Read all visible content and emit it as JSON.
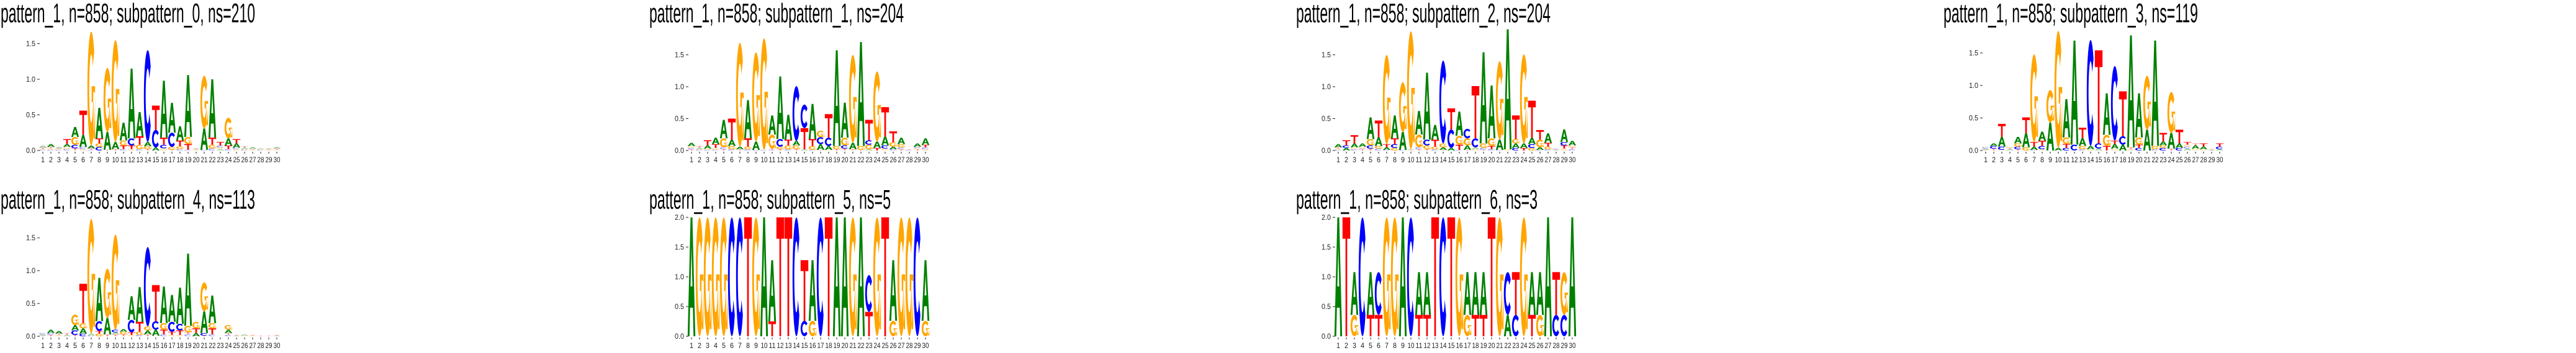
{
  "chart_data": [
    {
      "type": "sequence-logo",
      "title": "pattern_1, n=858; subpattern_0, ns=210",
      "ylim": [
        0,
        1.7
      ],
      "yticks": [
        "0.0",
        "0.5",
        "1.0",
        "1.5"
      ],
      "xticks": [
        "1",
        "2",
        "3",
        "4",
        "5",
        "6",
        "7",
        "8",
        "9",
        "10",
        "11",
        "12",
        "13",
        "14",
        "15",
        "16",
        "17",
        "18",
        "19",
        "20",
        "21",
        "22",
        "23",
        "24",
        "25",
        "26",
        "27",
        "28",
        "29",
        "30"
      ],
      "columns": [
        "C.01 G.01 T.02 A.03",
        "C.01 G.02 T.02 A.04",
        "C.01 G.01 T.01 A.02",
        "C.02 G.03 A.04 T.07",
        "T.03 C.05 G.11 A.14",
        "G.02 C.03 A.17 T.34",
        "C.01 T.02 A.04 G1.6",
        "C.05 G.05 T.07 A.43",
        "T.01 A.25 G.9",
        "T.02 A.1 G1.43",
        "C.02 T.05 G.07 A.25",
        "G.02 T.05 C.1 A.98",
        "C.02 G.06 T.12 A.34",
        "T.02 G.04 A.06 C1.29",
        "A.04 C.25 T.34",
        "G.03 C.05 T.1 A.8",
        "T.01 G.04 C.2 A.42",
        "C.02 G.04 T.08 A.2",
        "C.01 T.08 G.1 A.87",
        "G.01 T.01 A.01",
        "C.01 A.3 G.74",
        "C.03 G.05 T.1 A.82",
        "A.02 G.02 C.03 T.05",
        "C.02 T.05 A.1 G.29",
        "G.02 C.02 A.06 T.06",
        "C.01 G.01 A.02 T.02",
        "G.01 T.01 A.03",
        "C.01 G.01 A.01",
        "G.01 T.01 A.01",
        "G.01 T.02 A.02"
      ]
    },
    {
      "type": "sequence-logo",
      "title": "pattern_1, n=858; subpattern_1, ns=204",
      "ylim": [
        0,
        1.9
      ],
      "yticks": [
        "0.0",
        "0.5",
        "1.0",
        "1.5"
      ],
      "xticks": [
        "1",
        "2",
        "3",
        "4",
        "5",
        "6",
        "7",
        "8",
        "9",
        "10",
        "11",
        "12",
        "13",
        "14",
        "15",
        "16",
        "17",
        "18",
        "19",
        "20",
        "21",
        "22",
        "23",
        "24",
        "25",
        "26",
        "27",
        "28",
        "29",
        "30"
      ],
      "columns": [
        "T.02 C.02 G.03 A.05",
        "C.01 G.01 A.02 T.03",
        "C.01 G.02 A.05 T.08",
        "C.01 G.03 T.06 A.1",
        "T.02 C.03 G.14 A.29",
        "C.02 G.05 A.1 T.33",
        "T.02 A.04 G1.63",
        "C.02 G.04 T.13 A.6",
        "C.01 A.13 G1.4",
        "C.01 G1.75",
        "C.01 T.02 G.22 A.3",
        "T.02 G.04 C.12 A.98",
        "C.02 G.06 T.09 A.39",
        "T.02 G.06 A.07 C.86",
        "A.02 T.33 C.37",
        "C.01 G.06 T.11 A.55",
        "T.01 A.09 C.11 G.1",
        "G.01 A.06 C.13 T.37",
        "T.02 G.05 A1.5",
        "T.03 C.05 G.12 A.55",
        "T.02 A.1 G1.38",
        "T.01 G.06 A1.63",
        "A.02 G.07 C.07 T.32",
        "T.04 A.1 G1.1",
        "G.03 C.05 A.14 T.46",
        "C.02 A.04 G.07 T.17",
        "T.02 C.03 G.05 A.1",
        "C.01 T.01",
        "T.02 G.02 C.02 A.05",
        "G.02 C.03 T.04 A.1"
      ]
    },
    {
      "type": "sequence-logo",
      "title": "pattern_1, n=858; subpattern_2, ns=204",
      "ylim": [
        0,
        1.9
      ],
      "yticks": [
        "0.0",
        "0.5",
        "1.0",
        "1.5"
      ],
      "xticks": [
        "1",
        "2",
        "3",
        "4",
        "5",
        "6",
        "7",
        "8",
        "9",
        "10",
        "11",
        "12",
        "13",
        "14",
        "15",
        "16",
        "17",
        "18",
        "19",
        "20",
        "21",
        "22",
        "23",
        "24",
        "25",
        "26",
        "27",
        "28",
        "29",
        "30"
      ],
      "columns": [
        "C.01 G.02 T.02 A.05",
        "A.04 C.04 T.08",
        "C.02 G.03 A.06 T.13",
        "T.02 C.01 G.03 A.05",
        "T.03 C.05 G.1 A.34",
        "C.03 G.04 A.14 T.26",
        "C.01 A.04 T.05 G1.4",
        "G.04 C.06 T.09 A.36",
        "C.01 A.28 G.78",
        "T.01 A.01 G1.85",
        "T.02 C.03 G.2 A.37",
        "T.02 G.06 C.09 A1.05",
        "C.02 G.04 T.11 A.23",
        "T.01 A.04 G.06 C1.3",
        "A.04 C.29 T.33",
        "C.01 T.08 G.14 A.38",
        "T.01 A.07 G.11 C.15",
        "G.02 A.03 C.14 T.82",
        "T.01 C.03 G.07 A1.43",
        "C.02 T.05 G.12 A.83",
        "C.01 A.16 G1.23",
        "G.02 A1.88",
        "C.04 A.07 G.07 T.37",
        "T.04 A.07 G1.4",
        "G.04 C.06 A.1 T.58",
        "C.01 A.04 G.12 T.15",
        "C.02 G.04 T.06 A.15",
        "A.01 T.01 C.01",
        "G.03 T.05 C.05 A.2",
        "C.02 T.03 G.03 A.07"
      ]
    },
    {
      "type": "sequence-logo",
      "title": "pattern_1, n=858; subpattern_3, ns=119",
      "ylim": [
        0,
        1.85
      ],
      "yticks": [
        "0.0",
        "0.5",
        "1.0",
        "1.5"
      ],
      "xticks": [
        "1",
        "2",
        "3",
        "4",
        "5",
        "6",
        "7",
        "8",
        "9",
        "10",
        "11",
        "12",
        "13",
        "14",
        "15",
        "16",
        "17",
        "18",
        "19",
        "20",
        "21",
        "22",
        "23",
        "24",
        "25",
        "26",
        "27",
        "28",
        "29",
        "30"
      ],
      "columns": [
        "T.01 A.02 C.02 G.01",
        "T.03 C.04 A.04",
        "G.01 C.05 A.15 T.2",
        "A.02 T.02 G.02",
        "T.02 C.04 G.05 A.1",
        "G.05 A.22 T.24",
        "C.01 A.05 T.07 G1.35",
        "G.02 C.05 T.08 A.14",
        "A.43 G.5",
        "A.04 G1.8",
        "C.04 T.06 G.1 A.59",
        "C.09 A1.6",
        "C.02 G.05 A.12 T.16",
        "G.02 A.05 C1.63",
        "A.03 C.08 T1.43",
        "T.07 G.17 A.64",
        "G.03 A.07 T.05 C1.15",
        "A.09 C.13 T.69",
        "G.02 T.03 A1.72",
        "C.04 T.05 G.11 A.68",
        "A.32 G.83",
        "C.02 G.05 A1.62",
        "C.04 G.04 A.06 T.13",
        "T.03 A.24 G.63",
        "C.04 A.07 T.21",
        "A.03 C.03 G.03 T.04",
        "G.03 A.05 T.03",
        "G.02 A.04 T.05",
        "A.01 T.01",
        "A.02 C.04 T.05"
      ]
    },
    {
      "type": "sequence-logo",
      "title": "pattern_1, n=858; subpattern_4, ns=113",
      "ylim": [
        0,
        1.8
      ],
      "yticks": [
        "0.0",
        "0.5",
        "1.0",
        "1.5"
      ],
      "xticks": [
        "1",
        "2",
        "3",
        "4",
        "5",
        "6",
        "7",
        "8",
        "9",
        "10",
        "11",
        "12",
        "13",
        "14",
        "15",
        "16",
        "17",
        "18",
        "19",
        "20",
        "21",
        "22",
        "23",
        "24",
        "25",
        "26",
        "27",
        "28",
        "29",
        "30"
      ],
      "columns": [
        "T.01 A.02 C.02",
        "T.02 C.03 A.05",
        "G.02 T.02 A.04",
        "A.02 T.03",
        "T.02 C.07 A.08 G.16",
        "C.04 A.08 G.08 T.6",
        "C.01 A.03 G1.75",
        "G.04 T.04 C.15 A.66",
        "T.03 A.25 G.75",
        "T.03 A.03 C.04 G1.45",
        "T.03 G.04 A.04",
        "G.02 T.04 C.19 A.36",
        "C.02 G.05 T.15 A.53",
        "T.03 A.06 G.06 C1.21",
        "G.01 A.09 C.13 T.55",
        "C.03 T.07 G.1 A.56",
        "G.02 T.05 C.15 A.41",
        "G.02 T.07 C.1 A.55",
        "C.03 T.03 G.1 A1.1",
        "A.05 T.07 G.1",
        "T.01 C.04 A.33 G.44",
        "C.03 T.09 G.08 A.42",
        "",
        "C.02 T.03 A.05 G.07",
        "A.01 T.01",
        "G.01 A.02",
        "G.01 T.01",
        "T.01",
        "T.01",
        "A.01 T.01"
      ]
    },
    {
      "type": "sequence-logo",
      "title": "pattern_1, n=858; subpattern_5, ns=5",
      "ylim": [
        0,
        2.0
      ],
      "yticks": [
        "0.0",
        "0.5",
        "1.0",
        "1.5",
        "2.0"
      ],
      "xticks": [
        "1",
        "2",
        "3",
        "4",
        "5",
        "6",
        "7",
        "8",
        "9",
        "10",
        "11",
        "12",
        "13",
        "14",
        "15",
        "16",
        "17",
        "18",
        "19",
        "20",
        "21",
        "22",
        "23",
        "24",
        "25",
        "26",
        "27",
        "28",
        "29",
        "30"
      ],
      "columns": [
        "A2",
        "G2",
        "G2",
        "G2",
        "G2",
        "C2",
        "C2",
        "T2",
        "G2",
        "A2",
        "T.25 A1.03",
        "T2",
        "T2",
        "C2",
        "C.26 T1.02",
        "G.26 A1.02",
        "C2",
        "T2",
        "A2",
        "A2",
        "G2",
        "A2",
        "T.41 C.62",
        "G2",
        "T2",
        "G.26 A1.02",
        "G2",
        "G2",
        "C2",
        "G.26 A1.02"
      ]
    },
    {
      "type": "sequence-logo",
      "title": "pattern_1, n=858; subpattern_6, ns=3",
      "ylim": [
        0,
        2.0
      ],
      "yticks": [
        "0.0",
        "0.5",
        "1.0",
        "1.5",
        "2.0"
      ],
      "xticks": [
        "1",
        "2",
        "3",
        "4",
        "5",
        "6",
        "7",
        "8",
        "9",
        "10",
        "11",
        "12",
        "13",
        "14",
        "15",
        "16",
        "17",
        "18",
        "19",
        "20",
        "21",
        "22",
        "23",
        "24",
        "25",
        "26",
        "27",
        "28",
        "29",
        "30"
      ],
      "columns": [
        "A2",
        "T2",
        "G.36 A.72",
        "C2",
        "T.36 A.72",
        "T.36 C.72",
        "G2",
        "G2",
        "A2",
        "C2",
        "T.36 A.72",
        "T.36 A.72",
        "T2",
        "C2",
        "T2",
        "G2",
        "G.36 A.72",
        "T.36 A.72",
        "T.36 A.72",
        "T2",
        "G2",
        "A.36 C.72",
        "C.36 T.72",
        "G2",
        "T.36 A.72",
        "G.36 A.72",
        "A2",
        "C.36 T.72",
        "C.36 G.72",
        "A2"
      ]
    }
  ],
  "colors": {
    "A": "#008000",
    "C": "#0000ff",
    "G": "#ffa500",
    "T": "#ff0000"
  }
}
